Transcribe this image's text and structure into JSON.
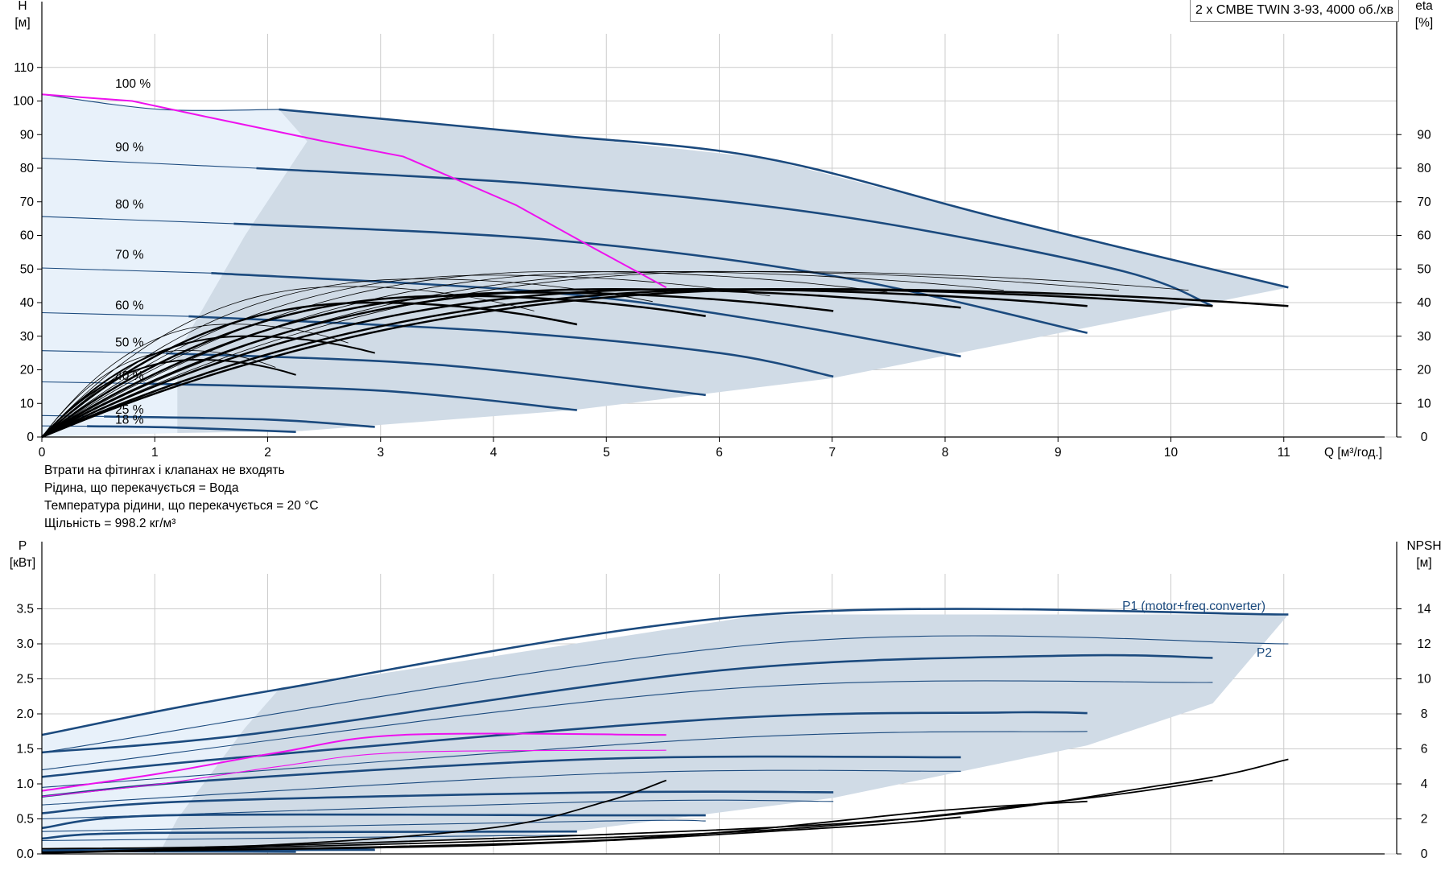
{
  "title": "2 x CMBE TWIN 3-93, 4000 об./хв",
  "notes": [
    "Втрати на фітингах і клапанах не входять",
    "Рідина, що перекачується = Вода",
    "Температура рідини, що перекачується = 20 °C",
    "Щільність = 998.2 кг/м³"
  ],
  "colors": {
    "envelope": "#d0dbe6",
    "envelope_light": "#e8f1fa",
    "curve": "#1b4a7e",
    "highlight": "#ee11ee",
    "eta": "#000000",
    "grid": "#cccccc"
  },
  "chart_data": [
    {
      "type": "line",
      "name": "head",
      "xlabel": "Q [м³/год.]",
      "ylabel": "H\n[м]",
      "y2label": "eta\n[%]",
      "xlim": [
        0,
        12
      ],
      "ylim": [
        0,
        120
      ],
      "y2lim": [
        0,
        120
      ],
      "xticks": [
        0,
        1,
        2,
        3,
        4,
        5,
        6,
        7,
        8,
        9,
        10,
        11
      ],
      "yticks": [
        0,
        10,
        20,
        30,
        40,
        50,
        60,
        70,
        80,
        90,
        100,
        110
      ],
      "y2ticks": [
        0,
        10,
        20,
        30,
        40,
        50,
        60,
        70,
        80,
        90
      ],
      "speed_labels": [
        {
          "text": "100 %",
          "x": 0.65,
          "y": 104
        },
        {
          "text": "90 %",
          "x": 0.65,
          "y": 85
        },
        {
          "text": "80 %",
          "x": 0.65,
          "y": 68
        },
        {
          "text": "70 %",
          "x": 0.65,
          "y": 53
        },
        {
          "text": "60 %",
          "x": 0.65,
          "y": 38
        },
        {
          "text": "50 %",
          "x": 0.65,
          "y": 27
        },
        {
          "text": "40 %",
          "x": 0.65,
          "y": 17
        },
        {
          "text": "25 %",
          "x": 0.65,
          "y": 7
        },
        {
          "text": "18 %",
          "x": 0.65,
          "y": 4
        }
      ],
      "envelope": [
        [
          0,
          102
        ],
        [
          1.05,
          97.5
        ],
        [
          2.1,
          97.5
        ],
        [
          4.5,
          90
        ],
        [
          6.4,
          83
        ],
        [
          8.5,
          65
        ],
        [
          11.04,
          44.5
        ],
        [
          7.0,
          17.5
        ],
        [
          4.7,
          8
        ],
        [
          2.3,
          1.8
        ],
        [
          1.2,
          1.2
        ],
        [
          0.5,
          2
        ],
        [
          0.3,
          4
        ],
        [
          0.2,
          11
        ],
        [
          0,
          16
        ]
      ],
      "envelope_light": [
        [
          0,
          102
        ],
        [
          1.05,
          97.5
        ],
        [
          2.1,
          97.5
        ],
        [
          2.35,
          88
        ],
        [
          1.8,
          60
        ],
        [
          1.2,
          25
        ],
        [
          1.2,
          1.2
        ],
        [
          0,
          0
        ]
      ],
      "series": [
        {
          "name": "100 %",
          "thin": [
            [
              0,
              102
            ],
            [
              1.05,
              97.5
            ],
            [
              2.1,
              97.5
            ]
          ],
          "thick": [
            [
              2.1,
              97.5
            ],
            [
              4.5,
              90
            ],
            [
              6.4,
              83
            ],
            [
              8.5,
              65
            ],
            [
              11.04,
              44.5
            ]
          ]
        },
        {
          "name": "90 %",
          "thin": [
            [
              0,
              83
            ],
            [
              1.9,
              80
            ]
          ],
          "thick": [
            [
              1.9,
              80
            ],
            [
              4.5,
              75
            ],
            [
              7,
              66
            ],
            [
              9.5,
              50
            ],
            [
              10.37,
              39
            ]
          ]
        },
        {
          "name": "80 %",
          "thin": [
            [
              0,
              65.6
            ],
            [
              1.7,
              63.5
            ]
          ],
          "thick": [
            [
              1.7,
              63.5
            ],
            [
              4.5,
              58.7
            ],
            [
              7,
              48
            ],
            [
              9.26,
              31
            ]
          ]
        },
        {
          "name": "70 %",
          "thin": [
            [
              0,
              50.3
            ],
            [
              1.5,
              48.8
            ]
          ],
          "thick": [
            [
              1.5,
              48.8
            ],
            [
              4.5,
              43
            ],
            [
              6.5,
              34
            ],
            [
              8.14,
              24
            ]
          ]
        },
        {
          "name": "60 %",
          "thin": [
            [
              0,
              37
            ],
            [
              1.3,
              35.9
            ]
          ],
          "thick": [
            [
              1.3,
              35.9
            ],
            [
              4,
              31.5
            ],
            [
              6,
              25
            ],
            [
              7.01,
              18
            ]
          ]
        },
        {
          "name": "50 %",
          "thin": [
            [
              0,
              25.7
            ],
            [
              1.1,
              24.9
            ]
          ],
          "thick": [
            [
              1.1,
              24.9
            ],
            [
              3.5,
              21.5
            ],
            [
              5.88,
              12.5
            ]
          ]
        },
        {
          "name": "40 %",
          "thin": [
            [
              0,
              16.4
            ],
            [
              0.9,
              15.9
            ]
          ],
          "thick": [
            [
              0.9,
              15.9
            ],
            [
              3,
              13.8
            ],
            [
              4.74,
              8
            ]
          ]
        },
        {
          "name": "25 %",
          "thin": [
            [
              0,
              6.4
            ],
            [
              0.55,
              6.1
            ]
          ],
          "thick": [
            [
              0.55,
              6.1
            ],
            [
              2,
              5.2
            ],
            [
              2.95,
              3
            ]
          ]
        },
        {
          "name": "18 %",
          "thin": [
            [
              0,
              3.3
            ],
            [
              0.4,
              3.2
            ]
          ],
          "thick": [
            [
              0.4,
              3.2
            ],
            [
              1.2,
              2.8
            ],
            [
              2.25,
              1.5
            ]
          ]
        }
      ],
      "highlight": [
        [
          0,
          102
        ],
        [
          0.8,
          100
        ],
        [
          1.5,
          95
        ],
        [
          2.5,
          88
        ],
        [
          3.2,
          83.5
        ],
        [
          4.2,
          69
        ],
        [
          4.9,
          56
        ],
        [
          5.53,
          44.5
        ]
      ],
      "eta_series": [
        {
          "end": [
            11.04,
            39
          ],
          "peak": 44,
          "width": 2.5
        },
        {
          "end": [
            10.37,
            39
          ],
          "peak": 44,
          "width": 2.5
        },
        {
          "end": [
            9.26,
            39
          ],
          "peak": 44,
          "width": 2.5
        },
        {
          "end": [
            8.14,
            38.5
          ],
          "peak": 44,
          "width": 2.5
        },
        {
          "end": [
            7.01,
            37.5
          ],
          "peak": 43,
          "width": 2.5
        },
        {
          "end": [
            5.88,
            36
          ],
          "peak": 42,
          "width": 2.5
        },
        {
          "end": [
            4.74,
            33.5
          ],
          "peak": 40,
          "width": 2.5
        },
        {
          "end": [
            2.95,
            25
          ],
          "peak": 30,
          "width": 2
        },
        {
          "end": [
            2.25,
            18.5
          ],
          "peak": 23,
          "width": 2
        }
      ]
    },
    {
      "type": "line",
      "name": "power",
      "xlabel": "",
      "ylabel": "P\n[кВт]",
      "y2label": "NPSH\n[м]",
      "xlim": [
        0,
        12
      ],
      "ylim": [
        0,
        4
      ],
      "y2lim": [
        0,
        16
      ],
      "yticks": [
        0.0,
        0.5,
        1.0,
        1.5,
        2.0,
        2.5,
        3.0,
        3.5
      ],
      "y2ticks": [
        0,
        2,
        4,
        6,
        8,
        10,
        12,
        14
      ],
      "label_p1": "P1 (motor+freq.converter)",
      "label_p2": "P2",
      "envelope": [
        [
          0,
          1.7
        ],
        [
          2.1,
          2.35
        ],
        [
          6.4,
          3.42
        ],
        [
          11.04,
          3.42
        ],
        [
          10.37,
          2.15
        ],
        [
          9.26,
          1.55
        ],
        [
          7.01,
          0.8
        ],
        [
          4.74,
          0.33
        ],
        [
          2.25,
          0.05
        ],
        [
          1.2,
          0.04
        ],
        [
          0,
          0.1
        ]
      ],
      "envelope_light": [
        [
          0,
          1.7
        ],
        [
          2.1,
          2.35
        ],
        [
          1.8,
          1.8
        ],
        [
          1.2,
          0.5
        ],
        [
          1.05,
          0.04
        ],
        [
          0,
          0.1
        ]
      ],
      "p1_series": [
        [
          [
            0,
            1.7
          ],
          [
            2.1,
            2.35
          ],
          [
            6.4,
            3.42
          ],
          [
            11.04,
            3.42
          ]
        ],
        [
          [
            0,
            1.45
          ],
          [
            1.9,
            1.72
          ],
          [
            6,
            2.62
          ],
          [
            9,
            2.83
          ],
          [
            10.37,
            2.8
          ]
        ],
        [
          [
            0,
            1.1
          ],
          [
            1.7,
            1.37
          ],
          [
            6,
            1.93
          ],
          [
            8.5,
            2.02
          ],
          [
            9.26,
            2.01
          ]
        ],
        [
          [
            0,
            0.82
          ],
          [
            1.5,
            1.05
          ],
          [
            5,
            1.36
          ],
          [
            8.14,
            1.38
          ]
        ],
        [
          [
            0,
            0.58
          ],
          [
            1.3,
            0.75
          ],
          [
            5,
            0.88
          ],
          [
            7.01,
            0.88
          ]
        ],
        [
          [
            0,
            0.37
          ],
          [
            1.1,
            0.55
          ],
          [
            5,
            0.55
          ],
          [
            5.88,
            0.55
          ]
        ],
        [
          [
            0,
            0.22
          ],
          [
            0.9,
            0.3
          ],
          [
            4.74,
            0.32
          ]
        ],
        [
          [
            0,
            0.05
          ],
          [
            0.55,
            0.07
          ],
          [
            2.95,
            0.06
          ]
        ],
        [
          [
            0,
            0.04
          ],
          [
            0.4,
            0.04
          ],
          [
            2.25,
            0.03
          ]
        ]
      ],
      "p2_series": [
        [
          [
            0,
            1.45
          ],
          [
            6.4,
            3.0
          ],
          [
            11.04,
            3.0
          ]
        ],
        [
          [
            0,
            1.2
          ],
          [
            6,
            2.35
          ],
          [
            10.37,
            2.45
          ]
        ],
        [
          [
            0,
            0.95
          ],
          [
            6,
            1.65
          ],
          [
            9.26,
            1.75
          ]
        ],
        [
          [
            0,
            0.7
          ],
          [
            5,
            1.15
          ],
          [
            8.14,
            1.18
          ]
        ],
        [
          [
            0,
            0.5
          ],
          [
            5,
            0.75
          ],
          [
            7.01,
            0.75
          ]
        ],
        [
          [
            0,
            0.32
          ],
          [
            5,
            0.47
          ],
          [
            5.88,
            0.47
          ]
        ],
        [
          [
            0,
            0.19
          ],
          [
            4.74,
            0.27
          ]
        ],
        [
          [
            0,
            0.04
          ],
          [
            2.95,
            0.05
          ]
        ],
        [
          [
            0,
            0.03
          ],
          [
            2.25,
            0.025
          ]
        ]
      ],
      "highlight_p1": [
        [
          0,
          0.9
        ],
        [
          1.05,
          1.15
        ],
        [
          2.1,
          1.45
        ],
        [
          3.2,
          1.7
        ],
        [
          5.53,
          1.7
        ]
      ],
      "highlight_p2": [
        [
          0,
          0.82
        ],
        [
          1.05,
          1.0
        ],
        [
          2.1,
          1.25
        ],
        [
          3.2,
          1.45
        ],
        [
          5.53,
          1.48
        ]
      ],
      "npsh_series": [
        [
          [
            0,
            0.3
          ],
          [
            2,
            0.5
          ],
          [
            4,
            1.5
          ],
          [
            5,
            3.0
          ],
          [
            5.53,
            4.2
          ]
        ],
        [
          [
            0,
            0.1
          ],
          [
            4,
            0.5
          ],
          [
            7,
            1.5
          ],
          [
            8.14,
            2.1
          ]
        ],
        [
          [
            0,
            0.05
          ],
          [
            5,
            0.8
          ],
          [
            8,
            2.5
          ],
          [
            9.26,
            3.0
          ]
        ],
        [
          [
            0,
            0.05
          ],
          [
            6,
            1.2
          ],
          [
            9,
            3.0
          ],
          [
            10.37,
            4.2
          ]
        ],
        [
          [
            0,
            0.05
          ],
          [
            7,
            1.7
          ],
          [
            10,
            4.0
          ],
          [
            11.04,
            5.4
          ]
        ]
      ]
    }
  ]
}
